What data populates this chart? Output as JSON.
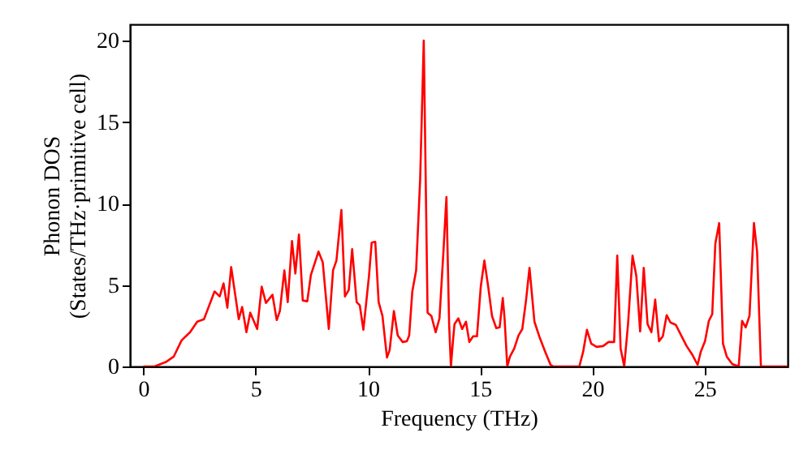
{
  "chart_data": {
    "type": "line",
    "xlabel": "Frequency (THz)",
    "ylabel": "Phonon DOS\n(States/THz·primitive cell)",
    "xlim": [
      -0.6,
      28.7
    ],
    "ylim": [
      0,
      21
    ],
    "xticks": [
      0,
      5,
      10,
      15,
      20,
      25
    ],
    "yticks": [
      0,
      5,
      10,
      15,
      20
    ],
    "grid": false,
    "marker": "none",
    "line_style": "solid",
    "series": [
      {
        "color": "#ff0000",
        "x": [
          0,
          0.5,
          1.0,
          1.35,
          1.7,
          2.08,
          2.4,
          2.7,
          3.17,
          3.4,
          3.57,
          3.74,
          3.91,
          4.25,
          4.4,
          4.59,
          4.76,
          5.07,
          5.27,
          5.46,
          5.75,
          5.94,
          6.08,
          6.28,
          6.43,
          6.62,
          6.77,
          6.93,
          7.1,
          7.3,
          7.46,
          7.8,
          7.99,
          8.26,
          8.45,
          8.6,
          8.82,
          8.98,
          9.15,
          9.3,
          9.5,
          9.64,
          9.8,
          10.05,
          10.17,
          10.33,
          10.48,
          10.65,
          10.85,
          10.97,
          11.16,
          11.33,
          11.55,
          11.74,
          11.84,
          11.98,
          12.15,
          12.33,
          12.49,
          12.66,
          12.83,
          13.02,
          13.19,
          13.36,
          13.5,
          13.62,
          13.7,
          13.79,
          13.86,
          14.03,
          14.2,
          14.37,
          14.52,
          14.69,
          14.86,
          15.03,
          15.19,
          15.36,
          15.53,
          15.72,
          15.87,
          16.01,
          16.09,
          16.21,
          16.33,
          16.52,
          16.71,
          16.88,
          17.05,
          17.2,
          17.42,
          17.66,
          17.9,
          18.14,
          18.26,
          19.42,
          19.59,
          19.76,
          19.95,
          20.19,
          20.48,
          20.72,
          20.97,
          21.11,
          21.26,
          21.42,
          21.59,
          21.79,
          21.96,
          22.13,
          22.29,
          22.46,
          22.63,
          22.8,
          22.97,
          23.14,
          23.31,
          23.48,
          23.72,
          23.96,
          24.2,
          24.44,
          24.69,
          24.83,
          25.02,
          25.19,
          25.34,
          25.48,
          25.65,
          25.82,
          25.99,
          26.23,
          26.52,
          26.67,
          26.83,
          27.0,
          27.2,
          27.34,
          27.51,
          28.7
        ],
        "values": [
          0,
          0,
          0.27,
          0.6,
          1.6,
          2.1,
          2.75,
          2.9,
          4.6,
          4.3,
          5.1,
          3.6,
          6.1,
          2.9,
          3.65,
          2.1,
          3.3,
          2.3,
          4.9,
          3.9,
          4.4,
          2.85,
          3.4,
          5.9,
          3.95,
          7.7,
          5.7,
          8.1,
          4.05,
          4.0,
          5.6,
          7.05,
          6.4,
          2.3,
          5.9,
          6.5,
          9.6,
          4.3,
          4.7,
          7.2,
          3.95,
          3.75,
          2.25,
          5.55,
          7.6,
          7.65,
          3.95,
          3.1,
          0.55,
          1.0,
          3.4,
          1.9,
          1.5,
          1.55,
          1.9,
          4.6,
          5.9,
          11.5,
          20.0,
          3.3,
          3.1,
          2.1,
          2.95,
          6.9,
          10.4,
          2.6,
          0,
          1.55,
          2.6,
          2.95,
          2.3,
          2.75,
          1.5,
          1.85,
          1.85,
          4.9,
          6.5,
          4.9,
          3.1,
          2.35,
          2.4,
          4.2,
          2.95,
          0,
          0.6,
          1.1,
          1.9,
          2.3,
          4.1,
          6.05,
          2.75,
          1.75,
          0.9,
          0.1,
          0,
          0,
          0.9,
          2.25,
          1.4,
          1.2,
          1.25,
          1.5,
          1.5,
          6.8,
          1.1,
          0,
          2.6,
          6.8,
          5.55,
          2.15,
          6.05,
          2.6,
          2.1,
          4.1,
          1.55,
          1.85,
          3.15,
          2.7,
          2.55,
          1.9,
          1.25,
          0.75,
          0.1,
          0.9,
          1.55,
          2.8,
          3.2,
          7.55,
          8.8,
          1.4,
          0.6,
          0.15,
          0,
          2.8,
          2.4,
          3.1,
          8.8,
          7.05,
          0,
          0
        ]
      }
    ]
  }
}
